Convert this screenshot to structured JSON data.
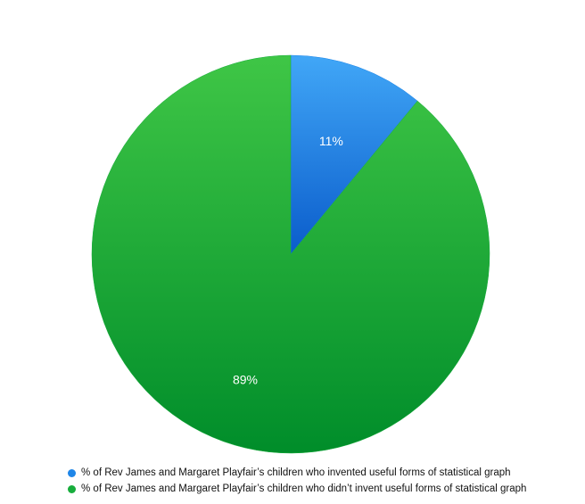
{
  "chart_data": {
    "type": "pie",
    "slices": [
      {
        "label": "% of Rev James and Margaret Playfair’s children who invented useful forms of statistical graph",
        "value": 11,
        "value_label": "11%",
        "color": "#1f86e8",
        "color_light": "#41a7f7",
        "color_dark": "#0a5ccb"
      },
      {
        "label": "% of Rev James and Margaret Playfair’s children who didn’t invent useful forms of statistical graph",
        "value": 89,
        "value_label": "89%",
        "color": "#17ad3c",
        "color_light": "#3fc646",
        "color_dark": "#008d2a"
      }
    ],
    "start_angle": "12 o'clock",
    "direction": "clockwise",
    "legend_position": "bottom-left"
  }
}
